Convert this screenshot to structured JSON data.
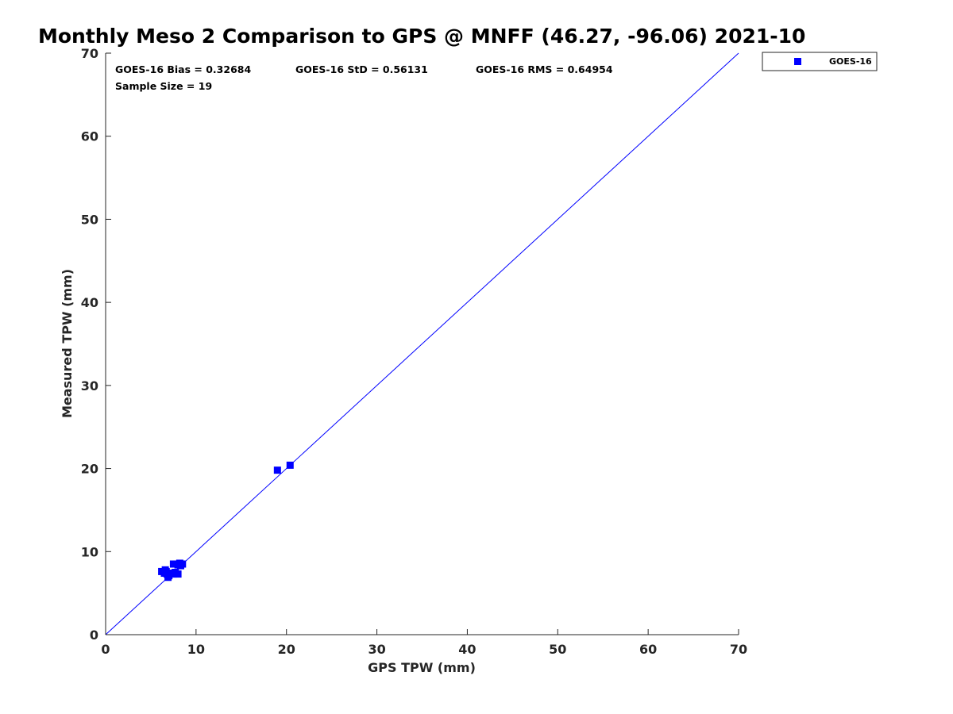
{
  "chart_data": {
    "type": "scatter",
    "title": "Monthly Meso 2 Comparison to GPS @ MNFF (46.27, -96.06) 2021-10",
    "xlabel": "GPS TPW (mm)",
    "ylabel": "Measured TPW (mm)",
    "xlim": [
      0,
      70
    ],
    "ylim": [
      0,
      70
    ],
    "xticks": [
      "0",
      "10",
      "20",
      "30",
      "40",
      "50",
      "60",
      "70"
    ],
    "yticks": [
      "0",
      "10",
      "20",
      "30",
      "40",
      "50",
      "60",
      "70"
    ],
    "grid": false,
    "legend_position": "outside-top-right",
    "stats": {
      "bias": "GOES-16 Bias = 0.32684",
      "std": "GOES-16 StD = 0.56131",
      "rms": "GOES-16 RMS = 0.64954",
      "sample_size": "Sample Size = 19"
    },
    "reference_line": {
      "x": [
        0,
        70
      ],
      "y": [
        0,
        70
      ],
      "color": "#0000ff"
    },
    "series": [
      {
        "name": "GOES-16",
        "color": "#0000ff",
        "marker": "square",
        "points": [
          {
            "x": 6.2,
            "y": 7.6
          },
          {
            "x": 6.6,
            "y": 7.8
          },
          {
            "x": 6.8,
            "y": 7.3
          },
          {
            "x": 7.0,
            "y": 7.1
          },
          {
            "x": 6.9,
            "y": 6.9
          },
          {
            "x": 7.2,
            "y": 7.4
          },
          {
            "x": 7.5,
            "y": 7.3
          },
          {
            "x": 7.7,
            "y": 7.5
          },
          {
            "x": 8.0,
            "y": 7.3
          },
          {
            "x": 7.5,
            "y": 8.5
          },
          {
            "x": 8.0,
            "y": 8.4
          },
          {
            "x": 8.2,
            "y": 8.6
          },
          {
            "x": 8.5,
            "y": 8.5
          },
          {
            "x": 8.3,
            "y": 8.3
          },
          {
            "x": 6.7,
            "y": 7.6
          },
          {
            "x": 7.8,
            "y": 8.5
          },
          {
            "x": 6.5,
            "y": 7.4
          },
          {
            "x": 19.0,
            "y": 19.8
          },
          {
            "x": 20.4,
            "y": 20.4
          }
        ]
      }
    ]
  }
}
